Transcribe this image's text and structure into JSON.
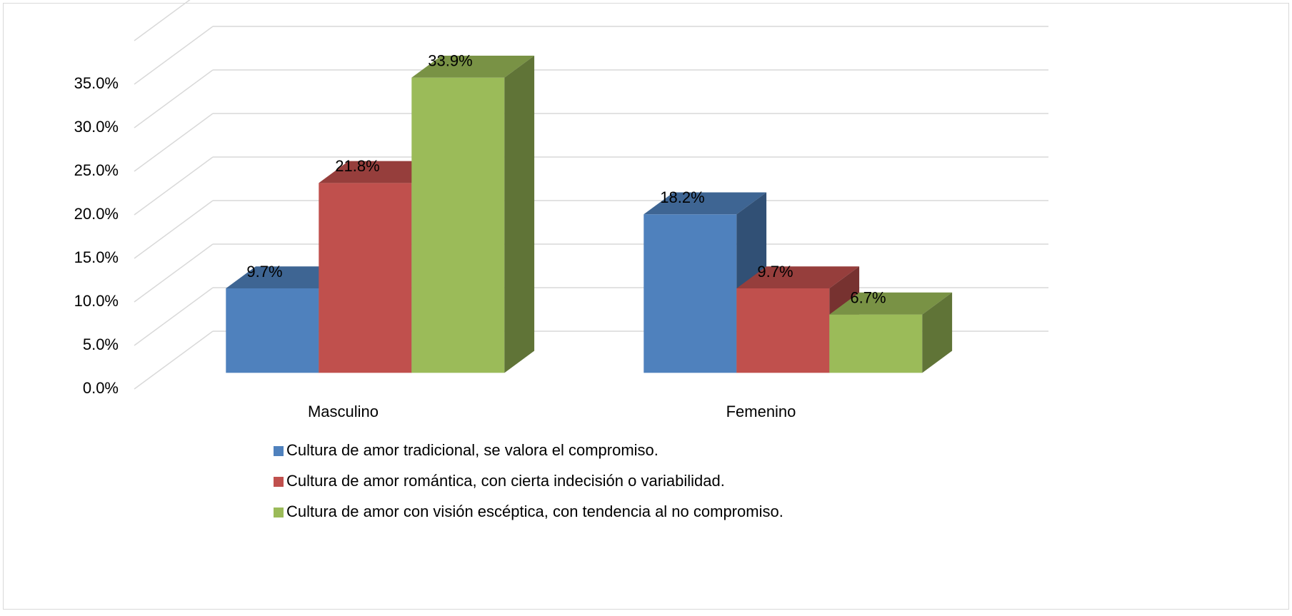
{
  "chart_data": {
    "type": "bar3d",
    "categories": [
      "Masculino",
      "Femenino"
    ],
    "series": [
      {
        "name": "Cultura de amor tradicional, se valora el compromiso.",
        "color": "#4f81bd",
        "values": [
          9.7,
          18.2
        ],
        "value_labels": [
          "9.7%",
          "18.2%"
        ]
      },
      {
        "name": "Cultura de amor romántica, con cierta indecisión o variabilidad.",
        "color": "#c0504d",
        "values": [
          21.8,
          9.7
        ],
        "value_labels": [
          "21.8%",
          "9.7%"
        ]
      },
      {
        "name": "Cultura de amor con visión escéptica, con tendencia al no compromiso.",
        "color": "#9bbb59",
        "values": [
          33.9,
          6.7
        ],
        "value_labels": [
          "33.9%",
          "6.7%"
        ]
      }
    ],
    "ylim": [
      0,
      35
    ],
    "yticks": [
      {
        "value": 0,
        "label": "0.0%"
      },
      {
        "value": 5,
        "label": "5.0%"
      },
      {
        "value": 10,
        "label": "10.0%"
      },
      {
        "value": 15,
        "label": "15.0%"
      },
      {
        "value": 20,
        "label": "20.0%"
      },
      {
        "value": 25,
        "label": "25.0%"
      },
      {
        "value": 30,
        "label": "30.0%"
      },
      {
        "value": 35,
        "label": "35.0%"
      }
    ],
    "grid": true,
    "legend": "bottom"
  }
}
